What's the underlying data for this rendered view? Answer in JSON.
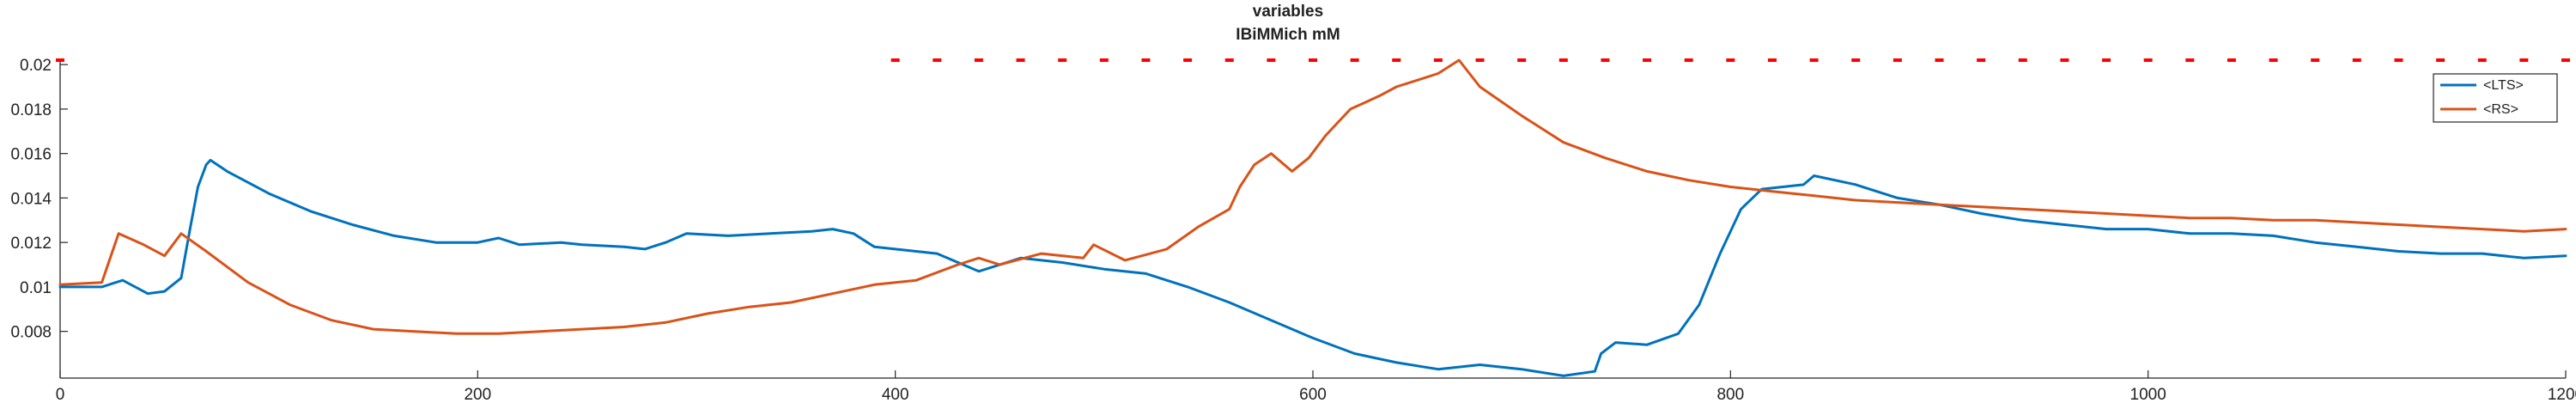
{
  "chart_data": {
    "type": "line",
    "title": "variables",
    "subtitle": "IBiMMich mM",
    "xlabel": "",
    "ylabel": "",
    "xlim": [
      0,
      1200
    ],
    "ylim": [
      0.0059,
      0.0202
    ],
    "xticks": [
      0,
      200,
      400,
      600,
      800,
      1000,
      1200
    ],
    "yticks": [
      0.008,
      0.01,
      0.012,
      0.014,
      0.016,
      0.018,
      0.02
    ],
    "ytick_labels": [
      "0.008",
      "0.01",
      "0.012",
      "0.014",
      "0.016",
      "0.018",
      "0.02"
    ],
    "grid": false,
    "legend": "top-right",
    "colors": {
      "LTS": "#0072bd",
      "RS": "#d95319",
      "marker": "#ff0000",
      "axis": "#262626"
    },
    "series": [
      {
        "name": "<LTS>",
        "color": "#0072bd",
        "points": [
          [
            0,
            0.01
          ],
          [
            20,
            0.01
          ],
          [
            30,
            0.0103
          ],
          [
            42,
            0.0097
          ],
          [
            50,
            0.0098
          ],
          [
            58,
            0.0104
          ],
          [
            62,
            0.0125
          ],
          [
            66,
            0.0145
          ],
          [
            70,
            0.0155
          ],
          [
            72,
            0.0157
          ],
          [
            80,
            0.0152
          ],
          [
            100,
            0.0142
          ],
          [
            120,
            0.0134
          ],
          [
            140,
            0.0128
          ],
          [
            160,
            0.0123
          ],
          [
            180,
            0.012
          ],
          [
            200,
            0.012
          ],
          [
            210,
            0.0122
          ],
          [
            220,
            0.0119
          ],
          [
            240,
            0.012
          ],
          [
            250,
            0.0119
          ],
          [
            270,
            0.0118
          ],
          [
            280,
            0.0117
          ],
          [
            290,
            0.012
          ],
          [
            300,
            0.0124
          ],
          [
            320,
            0.0123
          ],
          [
            340,
            0.0124
          ],
          [
            360,
            0.0125
          ],
          [
            370,
            0.0126
          ],
          [
            380,
            0.0124
          ],
          [
            390,
            0.0118
          ],
          [
            400,
            0.0117
          ],
          [
            410,
            0.0116
          ],
          [
            420,
            0.0115
          ],
          [
            440,
            0.0107
          ],
          [
            460,
            0.0113
          ],
          [
            480,
            0.0111
          ],
          [
            500,
            0.0108
          ],
          [
            520,
            0.0106
          ],
          [
            540,
            0.01
          ],
          [
            560,
            0.0093
          ],
          [
            580,
            0.0085
          ],
          [
            600,
            0.0077
          ],
          [
            620,
            0.007
          ],
          [
            640,
            0.0066
          ],
          [
            660,
            0.0063
          ],
          [
            680,
            0.0065
          ],
          [
            700,
            0.0063
          ],
          [
            720,
            0.006
          ],
          [
            735,
            0.0062
          ],
          [
            738,
            0.007
          ],
          [
            745,
            0.0075
          ],
          [
            760,
            0.0074
          ],
          [
            775,
            0.0079
          ],
          [
            785,
            0.0092
          ],
          [
            795,
            0.0115
          ],
          [
            805,
            0.0135
          ],
          [
            815,
            0.0144
          ],
          [
            825,
            0.0145
          ],
          [
            835,
            0.0146
          ],
          [
            840,
            0.015
          ],
          [
            860,
            0.0146
          ],
          [
            880,
            0.014
          ],
          [
            900,
            0.0137
          ],
          [
            920,
            0.0133
          ],
          [
            940,
            0.013
          ],
          [
            960,
            0.0128
          ],
          [
            980,
            0.0126
          ],
          [
            1000,
            0.0126
          ],
          [
            1020,
            0.0124
          ],
          [
            1040,
            0.0124
          ],
          [
            1060,
            0.0123
          ],
          [
            1080,
            0.012
          ],
          [
            1100,
            0.0118
          ],
          [
            1120,
            0.0116
          ],
          [
            1140,
            0.0115
          ],
          [
            1160,
            0.0115
          ],
          [
            1180,
            0.0113
          ],
          [
            1200,
            0.0114
          ]
        ]
      },
      {
        "name": "<RS>",
        "color": "#d95319",
        "points": [
          [
            0,
            0.0101
          ],
          [
            20,
            0.0102
          ],
          [
            28,
            0.0124
          ],
          [
            40,
            0.0119
          ],
          [
            50,
            0.0114
          ],
          [
            58,
            0.0124
          ],
          [
            70,
            0.0116
          ],
          [
            90,
            0.0102
          ],
          [
            110,
            0.0092
          ],
          [
            130,
            0.0085
          ],
          [
            150,
            0.0081
          ],
          [
            170,
            0.008
          ],
          [
            190,
            0.0079
          ],
          [
            210,
            0.0079
          ],
          [
            230,
            0.008
          ],
          [
            250,
            0.0081
          ],
          [
            270,
            0.0082
          ],
          [
            290,
            0.0084
          ],
          [
            310,
            0.0088
          ],
          [
            330,
            0.0091
          ],
          [
            350,
            0.0093
          ],
          [
            370,
            0.0097
          ],
          [
            390,
            0.0101
          ],
          [
            410,
            0.0103
          ],
          [
            430,
            0.011
          ],
          [
            440,
            0.0113
          ],
          [
            450,
            0.011
          ],
          [
            470,
            0.0115
          ],
          [
            490,
            0.0113
          ],
          [
            495,
            0.0119
          ],
          [
            510,
            0.0112
          ],
          [
            530,
            0.0117
          ],
          [
            545,
            0.0127
          ],
          [
            560,
            0.0135
          ],
          [
            565,
            0.0145
          ],
          [
            572,
            0.0155
          ],
          [
            580,
            0.016
          ],
          [
            590,
            0.0152
          ],
          [
            598,
            0.0158
          ],
          [
            606,
            0.0168
          ],
          [
            612,
            0.0174
          ],
          [
            618,
            0.018
          ],
          [
            625,
            0.0183
          ],
          [
            632,
            0.0186
          ],
          [
            640,
            0.019
          ],
          [
            650,
            0.0193
          ],
          [
            660,
            0.0196
          ],
          [
            670,
            0.0202
          ],
          [
            680,
            0.019
          ],
          [
            700,
            0.0177
          ],
          [
            720,
            0.0165
          ],
          [
            740,
            0.0158
          ],
          [
            760,
            0.0152
          ],
          [
            780,
            0.0148
          ],
          [
            800,
            0.0145
          ],
          [
            820,
            0.0143
          ],
          [
            840,
            0.0141
          ],
          [
            860,
            0.0139
          ],
          [
            880,
            0.0138
          ],
          [
            900,
            0.0137
          ],
          [
            920,
            0.0136
          ],
          [
            940,
            0.0135
          ],
          [
            960,
            0.0134
          ],
          [
            980,
            0.0133
          ],
          [
            1000,
            0.0132
          ],
          [
            1020,
            0.0131
          ],
          [
            1040,
            0.0131
          ],
          [
            1060,
            0.013
          ],
          [
            1080,
            0.013
          ],
          [
            1100,
            0.0129
          ],
          [
            1120,
            0.0128
          ],
          [
            1140,
            0.0127
          ],
          [
            1160,
            0.0126
          ],
          [
            1180,
            0.0125
          ],
          [
            1200,
            0.0126
          ]
        ]
      }
    ],
    "marker_series": {
      "y": 0.0202,
      "x": [
        0,
        400,
        420,
        440,
        460,
        480,
        500,
        520,
        540,
        560,
        580,
        600,
        620,
        640,
        660,
        680,
        700,
        720,
        740,
        760,
        780,
        800,
        820,
        840,
        860,
        880,
        900,
        920,
        940,
        960,
        980,
        1000,
        1020,
        1040,
        1060,
        1080,
        1100,
        1120,
        1140,
        1160,
        1180,
        1200
      ]
    }
  }
}
